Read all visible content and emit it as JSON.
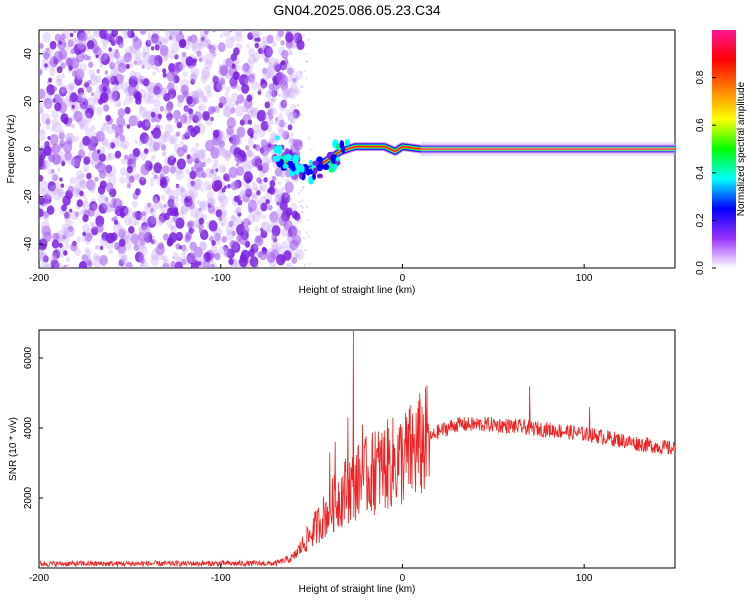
{
  "title": "GN04.2025.086.05.23.C34",
  "chart_data": [
    {
      "type": "heatmap",
      "xlabel": "Height of straight line (km)",
      "ylabel": "Frequency (Hz)",
      "xlim": [
        -200,
        150
      ],
      "ylim": [
        -50,
        50
      ],
      "xticks": [
        "-200",
        "-100",
        "0",
        "100"
      ],
      "yticks": [
        "-40",
        "-20",
        "0",
        "20",
        "40"
      ],
      "colorbar": {
        "label": "Normalized spectral amplitude",
        "range": [
          0,
          1
        ],
        "ticks": [
          "0.0",
          "0.2",
          "0.4",
          "0.6",
          "0.8"
        ],
        "colors": [
          "#ffffff",
          "#9b30ff",
          "#0000ff",
          "#00ffff",
          "#00ff00",
          "#ffff00",
          "#ff8000",
          "#ff0000",
          "#ff1493"
        ]
      },
      "noise_region_x": [
        -200,
        -60
      ],
      "ridge": [
        {
          "x": -68,
          "f": -5
        },
        {
          "x": -60,
          "f": -7
        },
        {
          "x": -52,
          "f": -9
        },
        {
          "x": -46,
          "f": -7
        },
        {
          "x": -40,
          "f": -4
        },
        {
          "x": -34,
          "f": -1
        },
        {
          "x": -26,
          "f": 1
        },
        {
          "x": -18,
          "f": 1
        },
        {
          "x": -10,
          "f": 1
        },
        {
          "x": -4,
          "f": -1
        },
        {
          "x": 0,
          "f": 1
        },
        {
          "x": 10,
          "f": 0
        },
        {
          "x": 50,
          "f": 0
        },
        {
          "x": 100,
          "f": 0
        },
        {
          "x": 150,
          "f": 0
        }
      ]
    },
    {
      "type": "line",
      "xlabel": "Height of straight line (km)",
      "ylabel": "SNR (10 * v/v)",
      "xlim": [
        -200,
        150
      ],
      "ylim": [
        0,
        6800
      ],
      "xticks": [
        "-200",
        "-100",
        "0",
        "100"
      ],
      "yticks": [
        "2000",
        "4000",
        "6000"
      ],
      "color": "#ee2222",
      "envelope": [
        {
          "x": -200,
          "y": 120
        },
        {
          "x": -70,
          "y": 130
        },
        {
          "x": -60,
          "y": 300
        },
        {
          "x": -50,
          "y": 1000
        },
        {
          "x": -40,
          "y": 1700
        },
        {
          "x": -30,
          "y": 2300
        },
        {
          "x": -20,
          "y": 2600
        },
        {
          "x": -10,
          "y": 2900
        },
        {
          "x": 0,
          "y": 3100
        },
        {
          "x": 10,
          "y": 3500
        },
        {
          "x": 20,
          "y": 3900
        },
        {
          "x": 30,
          "y": 4100
        },
        {
          "x": 50,
          "y": 4100
        },
        {
          "x": 70,
          "y": 4000
        },
        {
          "x": 90,
          "y": 3900
        },
        {
          "x": 110,
          "y": 3750
        },
        {
          "x": 130,
          "y": 3550
        },
        {
          "x": 150,
          "y": 3400
        }
      ],
      "spikes": [
        {
          "x": -40,
          "y": 3300
        },
        {
          "x": -37,
          "y": 3600
        },
        {
          "x": -30,
          "y": 4300
        },
        {
          "x": -27,
          "y": 6800
        },
        {
          "x": -22,
          "y": 4100
        },
        {
          "x": -15,
          "y": 3900
        },
        {
          "x": 70,
          "y": 5200
        },
        {
          "x": 103,
          "y": 4600
        }
      ]
    }
  ]
}
